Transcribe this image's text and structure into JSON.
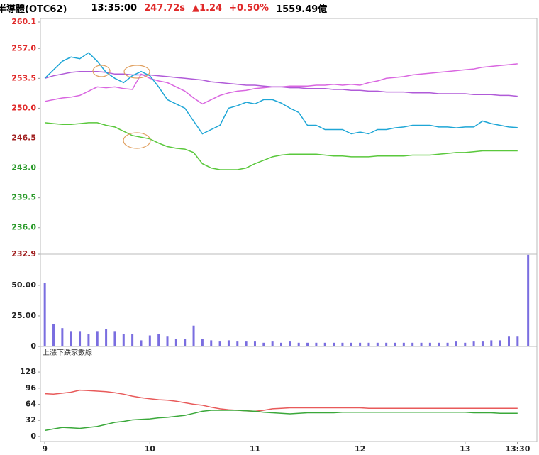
{
  "header": {
    "name": "半導體(OTC62)",
    "time": "13:35:00",
    "price": "247.72s",
    "change": "▲1.24",
    "percent": "+0.50%",
    "amount": "1559.49億"
  },
  "chart_data": [
    {
      "type": "line",
      "reference": 246.5,
      "up_color": "#e02a2a",
      "down_color": "#2a9a2a",
      "ref_color": "#a02020",
      "ylim": [
        232.9,
        260.1
      ],
      "yticks": [
        260.1,
        {
          "value": 257,
          "label": "257.0"
        },
        253.5,
        {
          "value": 250,
          "label": "250.0"
        },
        246.5,
        {
          "value": 243,
          "label": "243.0"
        },
        239.5,
        {
          "value": 236,
          "label": "236.0"
        },
        232.9
      ],
      "xlim": [
        -2.5,
        281
      ],
      "x": [
        0,
        5,
        10,
        15,
        20,
        25,
        30,
        35,
        40,
        45,
        50,
        55,
        60,
        65,
        70,
        75,
        80,
        85,
        90,
        95,
        100,
        105,
        110,
        115,
        120,
        125,
        130,
        135,
        140,
        145,
        150,
        155,
        160,
        165,
        170,
        175,
        180,
        185,
        190,
        195,
        200,
        205,
        210,
        215,
        220,
        225,
        230,
        235,
        240,
        245,
        250,
        255,
        260,
        265,
        270
      ],
      "series": [
        {
          "color": "#d966e0",
          "values": [
            250.8,
            251,
            251.2,
            251.3,
            251.5,
            252,
            252.5,
            252.4,
            252.5,
            252.3,
            252.2,
            254,
            253.5,
            253.2,
            253,
            252.5,
            252,
            251.2,
            250.5,
            251,
            251.5,
            251.8,
            252,
            252.1,
            252.3,
            252.4,
            252.5,
            252.5,
            252.6,
            252.6,
            252.6,
            252.7,
            252.7,
            252.8,
            252.7,
            252.8,
            252.7,
            253,
            253.2,
            253.5,
            253.6,
            253.7,
            253.9,
            254,
            254.1,
            254.2,
            254.3,
            254.4,
            254.5,
            254.6,
            254.8,
            254.9,
            255,
            255.1,
            255.2
          ]
        },
        {
          "color": "#b05ad8",
          "values": [
            253.5,
            253.8,
            254,
            254.2,
            254.3,
            254.3,
            254.3,
            254.2,
            254,
            254,
            253.9,
            253.9,
            253.9,
            253.8,
            253.7,
            253.6,
            253.5,
            253.4,
            253.3,
            253.1,
            253,
            252.9,
            252.8,
            252.7,
            252.7,
            252.6,
            252.5,
            252.5,
            252.4,
            252.4,
            252.3,
            252.3,
            252.3,
            252.2,
            252.2,
            252.1,
            252.1,
            252,
            252,
            251.9,
            251.9,
            251.9,
            251.8,
            251.8,
            251.8,
            251.7,
            251.7,
            251.7,
            251.7,
            251.6,
            251.6,
            251.6,
            251.5,
            251.5,
            251.4
          ]
        },
        {
          "color": "#5ac83c",
          "values": [
            248.3,
            248.2,
            248.1,
            248.1,
            248.2,
            248.3,
            248.3,
            248,
            247.8,
            247.3,
            246.8,
            246.6,
            246.4,
            245.9,
            245.5,
            245.3,
            245.2,
            244.8,
            243.5,
            243,
            242.8,
            242.8,
            242.8,
            243,
            243.5,
            243.9,
            244.3,
            244.5,
            244.6,
            244.6,
            244.6,
            244.6,
            244.5,
            244.4,
            244.4,
            244.3,
            244.3,
            244.3,
            244.4,
            244.4,
            244.4,
            244.4,
            244.5,
            244.5,
            244.5,
            244.6,
            244.7,
            244.8,
            244.8,
            244.9,
            245,
            245,
            245,
            245,
            245
          ]
        },
        {
          "color": "#1ea6d6",
          "values": [
            253.5,
            254.5,
            255.5,
            256,
            255.8,
            256.5,
            255.5,
            254.2,
            253.5,
            253,
            253.8,
            254.3,
            253.8,
            252.5,
            251,
            250.5,
            250,
            248.5,
            247,
            247.5,
            248,
            250,
            250.3,
            250.7,
            250.5,
            251,
            251,
            250.6,
            250,
            249.5,
            248,
            248,
            247.5,
            247.5,
            247.5,
            247,
            247.2,
            247,
            247.5,
            247.5,
            247.7,
            247.8,
            248,
            248,
            248,
            247.8,
            247.8,
            247.7,
            247.8,
            247.8,
            248.5,
            248.2,
            248,
            247.8,
            247.72
          ]
        }
      ]
    },
    {
      "type": "bar",
      "color": "#7a6ee0",
      "ylim": [
        0,
        75.5
      ],
      "yticks": [
        {
          "value": 50,
          "label": "50.00"
        },
        {
          "value": 25,
          "label": "25.00"
        },
        0
      ],
      "xlim": [
        -2.5,
        281
      ],
      "x": [
        0,
        5,
        10,
        15,
        20,
        25,
        30,
        35,
        40,
        45,
        50,
        55,
        60,
        65,
        70,
        75,
        80,
        85,
        90,
        95,
        100,
        105,
        110,
        115,
        120,
        125,
        130,
        135,
        140,
        145,
        150,
        155,
        160,
        165,
        170,
        175,
        180,
        185,
        190,
        195,
        200,
        205,
        210,
        215,
        220,
        225,
        230,
        235,
        240,
        245,
        250,
        255,
        260,
        265,
        270,
        276
      ],
      "values": [
        52,
        18,
        15,
        12,
        12,
        10,
        12,
        14,
        12,
        10,
        10,
        5,
        9,
        10,
        8,
        6,
        6,
        17,
        6,
        5,
        4,
        5,
        4,
        4,
        4,
        3,
        4,
        3,
        4,
        3,
        3,
        3,
        3,
        3,
        3,
        3,
        3,
        3,
        3,
        3,
        3,
        3,
        3,
        3,
        3,
        3,
        3,
        4,
        3,
        4,
        4,
        5,
        5,
        8,
        8,
        75
      ]
    },
    {
      "type": "line",
      "title": "上漲下跌家數線",
      "ylim": [
        -10,
        176
      ],
      "yticks": [
        128,
        96,
        64,
        32,
        0
      ],
      "xlim": [
        -2.5,
        281
      ],
      "xticks": [
        {
          "value": 0,
          "label": "9"
        },
        {
          "value": 60,
          "label": "10"
        },
        {
          "value": 120,
          "label": "11"
        },
        {
          "value": 180,
          "label": "12"
        },
        {
          "value": 240,
          "label": "13"
        },
        {
          "value": 270,
          "label": "13:30"
        }
      ],
      "x": [
        0,
        5,
        10,
        15,
        20,
        25,
        30,
        35,
        40,
        45,
        50,
        55,
        60,
        65,
        70,
        75,
        80,
        85,
        90,
        95,
        100,
        105,
        110,
        115,
        120,
        125,
        130,
        135,
        140,
        145,
        150,
        155,
        160,
        165,
        170,
        175,
        180,
        185,
        190,
        195,
        200,
        205,
        210,
        215,
        220,
        225,
        230,
        235,
        240,
        245,
        250,
        255,
        260,
        265,
        270
      ],
      "series": [
        {
          "color": "#e85a5a",
          "values": [
            85,
            84,
            86,
            88,
            92,
            91,
            90,
            89,
            87,
            84,
            80,
            77,
            75,
            73,
            72,
            70,
            67,
            64,
            62,
            58,
            55,
            53,
            52,
            51,
            50,
            52,
            55,
            56,
            57,
            57,
            57,
            57,
            57,
            57,
            57,
            57,
            57,
            56,
            56,
            56,
            56,
            56,
            56,
            56,
            56,
            56,
            56,
            56,
            56,
            56,
            56,
            56,
            56,
            56,
            56
          ]
        },
        {
          "color": "#3aa83a",
          "values": [
            12,
            15,
            18,
            17,
            16,
            18,
            20,
            24,
            28,
            30,
            33,
            34,
            35,
            37,
            38,
            40,
            42,
            46,
            50,
            52,
            52,
            52,
            52,
            51,
            50,
            48,
            47,
            46,
            45,
            46,
            47,
            47,
            47,
            47,
            48,
            48,
            48,
            48,
            48,
            48,
            48,
            48,
            48,
            48,
            48,
            48,
            48,
            48,
            48,
            47,
            47,
            47,
            46,
            46,
            46
          ]
        }
      ]
    }
  ]
}
